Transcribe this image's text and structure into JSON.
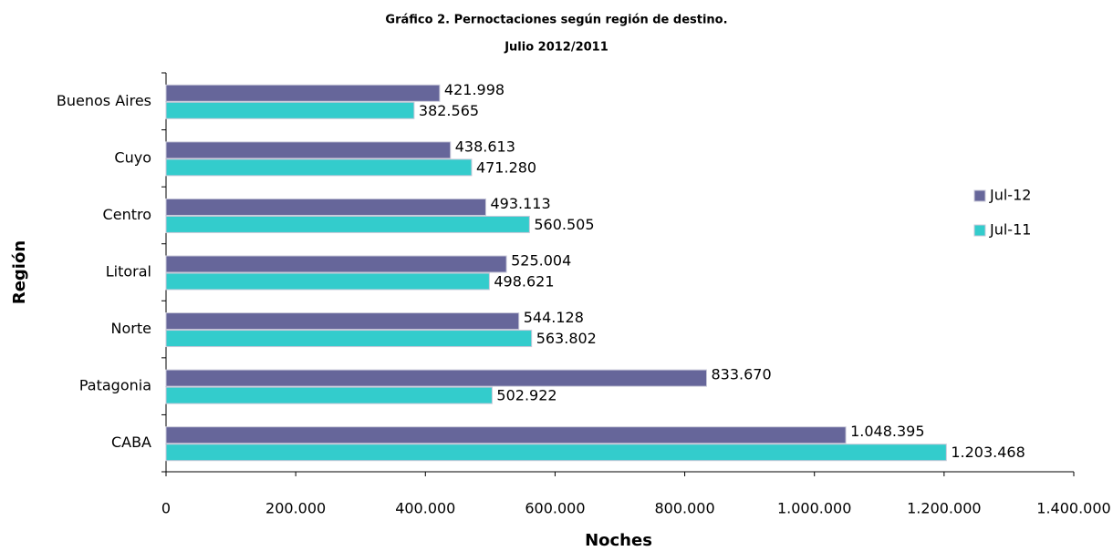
{
  "chart_data": {
    "type": "hbar",
    "title": "Gráfico 2. Pernoctaciones según región de destino.",
    "subtitle": "Julio 2012/2011",
    "x_label": "Noches",
    "y_label": "Región",
    "categories": [
      "Buenos Aires",
      "Cuyo",
      "Centro",
      "Litoral",
      "Norte",
      "Patagonia",
      "CABA"
    ],
    "series": [
      {
        "name": "Jul-12",
        "color": "#66669a",
        "values": [
          421998,
          438613,
          493113,
          525004,
          544128,
          833670,
          1048395
        ],
        "value_labels": [
          "421.998",
          "438.613",
          "493.113",
          "525.004",
          "544.128",
          "833.670",
          "1.048.395"
        ]
      },
      {
        "name": "Jul-11",
        "color": "#33cccc",
        "values": [
          382565,
          471280,
          560505,
          498621,
          563802,
          502922,
          1203468
        ],
        "value_labels": [
          "382.565",
          "471.280",
          "560.505",
          "498.621",
          "563.802",
          "502.922",
          "1.203.468"
        ]
      }
    ],
    "xlim": [
      0,
      1400000
    ],
    "xticks": [
      0,
      {
        "value": 200000,
        "label": "200.000"
      },
      {
        "value": 400000,
        "label": "400.000"
      },
      {
        "value": 600000,
        "label": "600.000"
      },
      {
        "value": 800000,
        "label": "800.000"
      },
      {
        "value": 1000000,
        "label": "1.000.000"
      },
      {
        "value": 1200000,
        "label": "1.200.000"
      },
      {
        "value": 1400000,
        "label": "1.400.000"
      }
    ],
    "legend": "right"
  }
}
